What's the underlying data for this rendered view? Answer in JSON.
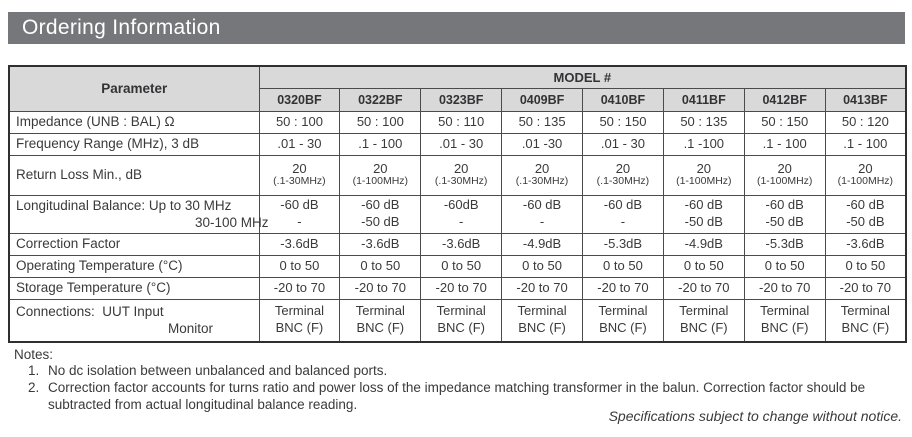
{
  "header": {
    "title": "Ordering Information"
  },
  "table": {
    "parameter_header": "Parameter",
    "model_header": "MODEL #",
    "models": [
      "0320BF",
      "0322BF",
      "0323BF",
      "0409BF",
      "0410BF",
      "0411BF",
      "0412BF",
      "0413BF"
    ],
    "rows": [
      {
        "id": "impedance",
        "label_lines": [
          "Impedance (UNB : BAL) Ω"
        ],
        "cells": [
          [
            "50 : 100"
          ],
          [
            "50 : 100"
          ],
          [
            "50 : 110"
          ],
          [
            "50 : 135"
          ],
          [
            "50 : 150"
          ],
          [
            "50 : 135"
          ],
          [
            "50 : 150"
          ],
          [
            "50 : 120"
          ]
        ]
      },
      {
        "id": "frequency",
        "label_lines": [
          "Frequency Range (MHz), 3 dB"
        ],
        "cells": [
          [
            ".01 - 30"
          ],
          [
            ".1 - 100"
          ],
          [
            ".01 - 30"
          ],
          [
            ".01 -30"
          ],
          [
            ".01 - 30"
          ],
          [
            ".1 -100"
          ],
          [
            ".1 - 100"
          ],
          [
            ".1 - 100"
          ]
        ]
      },
      {
        "id": "return-loss",
        "label_lines": [
          "Return Loss Min., dB"
        ],
        "cells": [
          [
            "20",
            "(.1-30MHz)"
          ],
          [
            "20",
            "(1-100MHz)"
          ],
          [
            "20",
            "(.1-30MHz)"
          ],
          [
            "20",
            "(.1-30MHz)"
          ],
          [
            "20",
            "(.1-30MHz)"
          ],
          [
            "20",
            "(1-100MHz)"
          ],
          [
            "20",
            "(1-100MHz)"
          ],
          [
            "20",
            "(1-100MHz)"
          ]
        ]
      },
      {
        "id": "balance",
        "label_lines": [
          "Longitudinal Balance: Up to 30 MHz",
          "30-100 MHz"
        ],
        "cells": [
          [
            "-60 dB",
            "-"
          ],
          [
            "-60 dB",
            "-50 dB"
          ],
          [
            "-60dB",
            "-"
          ],
          [
            "-60 dB",
            "-"
          ],
          [
            "-60 dB",
            "-"
          ],
          [
            "-60 dB",
            "-50 dB"
          ],
          [
            "-60 dB",
            "-50 dB"
          ],
          [
            "-60 dB",
            "-50 dB"
          ]
        ]
      },
      {
        "id": "correction",
        "label_lines": [
          "Correction Factor"
        ],
        "cells": [
          [
            "-3.6dB"
          ],
          [
            "-3.6dB"
          ],
          [
            "-3.6dB"
          ],
          [
            "-4.9dB"
          ],
          [
            "-5.3dB"
          ],
          [
            "-4.9dB"
          ],
          [
            "-5.3dB"
          ],
          [
            "-3.6dB"
          ]
        ]
      },
      {
        "id": "op-temp",
        "label_lines": [
          "Operating Temperature (°C)"
        ],
        "cells": [
          [
            "0 to 50"
          ],
          [
            "0 to 50"
          ],
          [
            "0 to 50"
          ],
          [
            "0 to 50"
          ],
          [
            "0 to 50"
          ],
          [
            "0 to 50"
          ],
          [
            "0 to 50"
          ],
          [
            "0 to 50"
          ]
        ]
      },
      {
        "id": "storage-temp",
        "label_lines": [
          "Storage Temperature (°C)"
        ],
        "cells": [
          [
            "-20 to 70"
          ],
          [
            "-20 to 70"
          ],
          [
            "-20 to 70"
          ],
          [
            "-20 to 70"
          ],
          [
            "-20 to 70"
          ],
          [
            "-20 to 70"
          ],
          [
            "-20 to 70"
          ],
          [
            "-20 to 70"
          ]
        ]
      },
      {
        "id": "connections",
        "label_lines": [
          "Connections:  UUT Input",
          "Monitor"
        ],
        "cells": [
          [
            "Terminal",
            "BNC (F)"
          ],
          [
            "Terminal",
            "BNC (F)"
          ],
          [
            "Terminal",
            "BNC (F)"
          ],
          [
            "Terminal",
            "BNC (F)"
          ],
          [
            "Terminal",
            "BNC (F)"
          ],
          [
            "Terminal",
            "BNC (F)"
          ],
          [
            "Terminal",
            "BNC (F)"
          ],
          [
            "Terminal",
            "BNC (F)"
          ]
        ]
      }
    ]
  },
  "notes": {
    "heading": "Notes:",
    "items": [
      {
        "num": "1.",
        "text": "No dc isolation between unbalanced and balanced ports."
      },
      {
        "num": "2.",
        "text": "Correction factor accounts for turns ratio and power loss of the impedance matching transformer in the balun. Correction factor should be subtracted from actual longitudinal balance reading."
      }
    ]
  },
  "footer": {
    "note": "Specifications subject to change without notice."
  },
  "colors": {
    "title_bar_bg": "#76777a",
    "table_header_bg": "#d9d9da",
    "border": "#4b4b4d",
    "outer_border": "#2f2f31",
    "text": "#3a3a3c"
  }
}
